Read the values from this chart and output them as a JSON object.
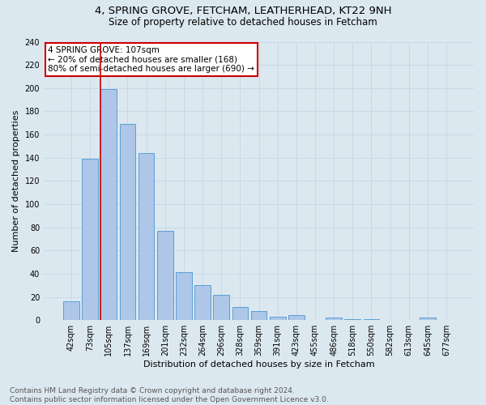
{
  "title": "4, SPRING GROVE, FETCHAM, LEATHERHEAD, KT22 9NH",
  "subtitle": "Size of property relative to detached houses in Fetcham",
  "xlabel": "Distribution of detached houses by size in Fetcham",
  "ylabel": "Number of detached properties",
  "footnote1": "Contains HM Land Registry data © Crown copyright and database right 2024.",
  "footnote2": "Contains public sector information licensed under the Open Government Licence v3.0.",
  "bar_labels": [
    "42sqm",
    "73sqm",
    "105sqm",
    "137sqm",
    "169sqm",
    "201sqm",
    "232sqm",
    "264sqm",
    "296sqm",
    "328sqm",
    "359sqm",
    "391sqm",
    "423sqm",
    "455sqm",
    "486sqm",
    "518sqm",
    "550sqm",
    "582sqm",
    "613sqm",
    "645sqm",
    "677sqm"
  ],
  "bar_values": [
    16,
    139,
    199,
    169,
    144,
    77,
    41,
    30,
    22,
    11,
    8,
    3,
    4,
    0,
    2,
    1,
    1,
    0,
    0,
    2,
    0
  ],
  "bar_color": "#aec6e8",
  "bar_edge_color": "#5a9fd4",
  "highlight_index": 2,
  "highlight_line_color": "#cc0000",
  "annotation_text": "4 SPRING GROVE: 107sqm\n← 20% of detached houses are smaller (168)\n80% of semi-detached houses are larger (690) →",
  "annotation_box_color": "#cc0000",
  "ylim": [
    0,
    240
  ],
  "yticks": [
    0,
    20,
    40,
    60,
    80,
    100,
    120,
    140,
    160,
    180,
    200,
    220,
    240
  ],
  "grid_color": "#c8d8e8",
  "background_color": "#dce8f0",
  "title_fontsize": 9.5,
  "subtitle_fontsize": 8.5,
  "axis_label_fontsize": 8,
  "tick_fontsize": 7,
  "footnote_fontsize": 6.5
}
